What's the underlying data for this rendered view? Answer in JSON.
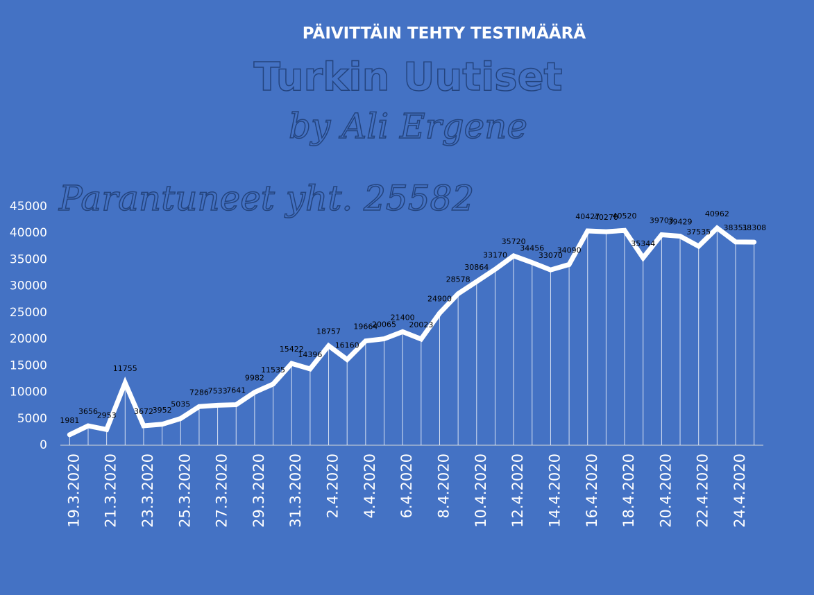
{
  "chart_data": {
    "type": "line",
    "title": "PÄIVITTÄIN TEHTY TESTIMÄÄRÄ",
    "annotations": [
      "Turkin Uutiset",
      "by Ali Ergene",
      "Parantuneet yht. 25582"
    ],
    "categories": [
      "19.3.2020",
      null,
      "21.3.2020",
      null,
      "23.3.2020",
      null,
      "25.3.2020",
      null,
      "27.3.2020",
      null,
      "29.3.2020",
      null,
      "31.3.2020",
      null,
      "2.4.2020",
      null,
      "4.4.2020",
      null,
      "6.4.2020",
      null,
      "8.4.2020",
      null,
      "10.4.2020",
      null,
      "12.4.2020",
      null,
      "14.4.2020",
      null,
      "16.4.2020",
      null,
      "18.4.2020",
      null,
      "20.4.2020",
      null,
      "22.4.2020",
      null,
      "24.4.2020",
      null
    ],
    "values": [
      1981,
      3656,
      2953,
      11755,
      3672,
      3952,
      5035,
      7286,
      7533,
      7641,
      9982,
      11535,
      15422,
      14396,
      18757,
      16160,
      19664,
      20065,
      21400,
      20023,
      24900,
      28578,
      30864,
      33170,
      35720,
      34456,
      33070,
      34090,
      40427,
      40270,
      40520,
      35344,
      39703,
      39429,
      37535,
      40962,
      38351,
      38308
    ],
    "color": "#ffffff",
    "ylim": [
      0,
      45000
    ],
    "yticks": [
      0,
      5000,
      10000,
      15000,
      20000,
      25000,
      30000,
      35000,
      40000,
      45000
    ]
  }
}
